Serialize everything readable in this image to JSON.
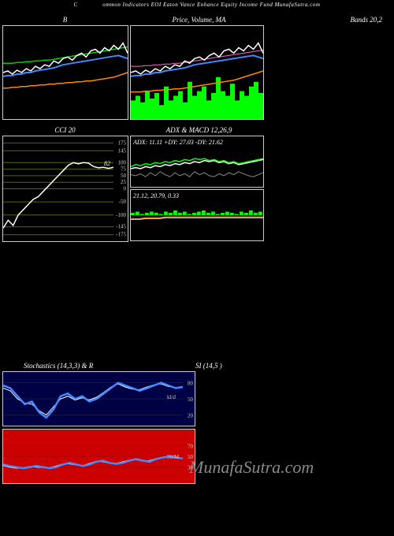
{
  "header": "ommon  Indicators EOI Eaton  Vance  Enhance  Equity Income  Fund MunafaSutra.com",
  "header_prefix": "C",
  "row1": {
    "left_title": "B",
    "center_title": "Price, Volume, MA",
    "right_title": "Bands 20,2"
  },
  "row2": {
    "cci_title": "CCI 20",
    "adx_title": "ADX  & MACD 12,26,9",
    "adx_text": "ADX: 11.11 +DY: 27.03 -DY: 21.62",
    "macd_text": "21.12,  20.79,  0.33",
    "cci_value": "82"
  },
  "row3": {
    "stoch_title": "Stochastics                          (14,3,3) & R",
    "rsi_title": "SI                              (14,5                                )",
    "stoch_label": "kl/d"
  },
  "watermark": "MunafaSutra.com",
  "colors": {
    "bg": "#000000",
    "border": "#cccccc",
    "white_line": "#ffffff",
    "blue_line": "#4488ff",
    "green_line": "#00cc00",
    "orange_line": "#ff8800",
    "pink_line": "#ff66cc",
    "bright_green": "#00ff00",
    "dark_green_grid": "#556600",
    "red_bg": "#cc0000",
    "dark_blue_bg": "#000044",
    "grey_line": "#888888"
  },
  "chart1_left": {
    "white": [
      60,
      62,
      58,
      63,
      60,
      65,
      62,
      68,
      65,
      70,
      68,
      75,
      72,
      78,
      80,
      76,
      82,
      85,
      80,
      88,
      90,
      85,
      92,
      88,
      95,
      90,
      98,
      85
    ],
    "blue": [
      55,
      56,
      56,
      58,
      58,
      60,
      60,
      62,
      63,
      64,
      65,
      66,
      68,
      70,
      71,
      72,
      73,
      74,
      75,
      76,
      77,
      78,
      79,
      80,
      81,
      82,
      80,
      78
    ],
    "green": [
      72,
      72,
      72,
      73,
      73,
      74,
      74,
      75,
      75,
      76,
      76,
      77,
      78,
      79,
      80,
      81,
      82,
      83,
      84,
      85,
      86,
      87,
      88,
      89,
      90,
      91,
      92,
      93
    ],
    "orange": [
      40,
      40,
      41,
      41,
      42,
      42,
      43,
      43,
      44,
      44,
      45,
      45,
      46,
      46,
      47,
      47,
      48,
      48,
      49,
      49,
      50,
      51,
      52,
      53,
      54,
      56,
      58,
      60
    ]
  },
  "chart1_center": {
    "volume": [
      20,
      25,
      18,
      30,
      22,
      28,
      15,
      35,
      20,
      25,
      30,
      18,
      40,
      25,
      30,
      35,
      20,
      28,
      45,
      30,
      25,
      38,
      20,
      30,
      25,
      35,
      40,
      28
    ],
    "white": [
      60,
      62,
      58,
      63,
      60,
      65,
      62,
      68,
      65,
      70,
      68,
      75,
      72,
      78,
      80,
      76,
      82,
      85,
      80,
      88,
      90,
      85,
      92,
      88,
      95,
      90,
      98,
      85
    ],
    "blue": [
      55,
      56,
      56,
      58,
      58,
      60,
      60,
      62,
      63,
      64,
      65,
      66,
      68,
      70,
      71,
      72,
      73,
      74,
      75,
      76,
      77,
      78,
      79,
      80,
      81,
      82,
      80,
      78
    ],
    "pink": [
      68,
      68,
      68,
      69,
      69,
      70,
      70,
      71,
      71,
      72,
      72,
      73,
      74,
      75,
      76,
      77,
      78,
      79,
      80,
      81,
      82,
      83,
      84,
      85,
      86,
      87,
      88,
      89
    ],
    "orange": [
      35,
      35,
      35,
      36,
      36,
      37,
      37,
      38,
      38,
      39,
      39,
      40,
      41,
      42,
      43,
      44,
      45,
      46,
      47,
      48,
      49,
      50,
      52,
      54,
      56,
      58,
      60,
      62
    ]
  },
  "cci": {
    "grid_levels": [
      175,
      145,
      100,
      75,
      50,
      25,
      0,
      -50,
      -100,
      -145,
      -175
    ],
    "values": [
      -150,
      -120,
      -140,
      -100,
      -80,
      -60,
      -40,
      -30,
      -10,
      10,
      30,
      50,
      70,
      90,
      100,
      95,
      100,
      98,
      85,
      80,
      82,
      78,
      82
    ]
  },
  "adx": {
    "green": [
      20,
      22,
      21,
      23,
      22,
      24,
      23,
      25,
      24,
      26,
      25,
      27,
      26,
      28,
      27,
      28,
      26,
      27,
      25,
      26,
      24,
      25,
      23,
      24,
      25,
      26,
      27,
      28
    ],
    "white": [
      18,
      19,
      18,
      20,
      19,
      21,
      20,
      22,
      21,
      23,
      22,
      24,
      23,
      25,
      24,
      26,
      25,
      26,
      24,
      25,
      23,
      24,
      22,
      23,
      24,
      25,
      26,
      27
    ],
    "grey": [
      12,
      11,
      13,
      10,
      14,
      11,
      15,
      12,
      10,
      14,
      11,
      13,
      10,
      15,
      12,
      14,
      11,
      10,
      13,
      11,
      14,
      12,
      15,
      13,
      11,
      10,
      12,
      14
    ]
  },
  "macd": {
    "hist": [
      2,
      3,
      1,
      2,
      3,
      2,
      1,
      3,
      2,
      4,
      2,
      3,
      1,
      2,
      3,
      4,
      2,
      3,
      1,
      2,
      3,
      2,
      1,
      3,
      2,
      4,
      2,
      3
    ],
    "line": [
      25,
      25,
      25,
      26,
      26,
      26,
      26,
      27,
      27,
      27,
      27,
      27,
      27,
      27,
      27,
      27,
      27,
      27,
      27,
      27,
      27,
      27,
      27,
      27,
      27,
      27,
      27,
      27
    ]
  },
  "stoch": {
    "blue": [
      75,
      70,
      55,
      40,
      45,
      25,
      15,
      30,
      55,
      60,
      50,
      55,
      45,
      50,
      60,
      70,
      80,
      75,
      70,
      65,
      70,
      75,
      80,
      75,
      70,
      72
    ],
    "white": [
      70,
      65,
      50,
      42,
      40,
      28,
      20,
      35,
      50,
      55,
      48,
      52,
      48,
      53,
      62,
      72,
      78,
      72,
      68,
      67,
      72,
      76,
      78,
      73,
      71,
      73
    ]
  },
  "rsi": {
    "blue": [
      35,
      32,
      30,
      28,
      30,
      32,
      30,
      28,
      30,
      35,
      38,
      35,
      32,
      35,
      40,
      42,
      38,
      36,
      38,
      42,
      45,
      42,
      40,
      45,
      48,
      50,
      48,
      46
    ],
    "white": [
      33,
      30,
      28,
      29,
      31,
      30,
      29,
      29,
      32,
      36,
      36,
      34,
      33,
      37,
      41,
      40,
      37,
      37,
      40,
      43,
      44,
      41,
      42,
      46,
      49,
      49,
      47,
      47
    ]
  }
}
